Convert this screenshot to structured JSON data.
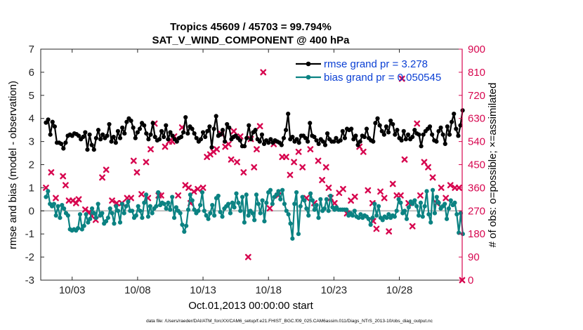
{
  "chart_data": {
    "type": "line",
    "title": "Tropics 45609 / 45703 = 99.794%",
    "subtitle": "SAT_V_WIND_COMPONENT @ 400 hPa",
    "xlabel": "Oct.01,2013 00:00:00 start",
    "ylabel_left": "rmse and bias (model - observation)",
    "ylabel_right": "# of obs: o=possible; ×=assimilated",
    "footnote": "data file: /Users/raeder/DAI/ATM_forcXX/CAM6_setup/f.e21.FHIST_BGC.f09_025.CAM6assim.011/Diags_NTrS_2013-10/obs_diag_output.nc",
    "xlim": [
      0.6,
      32.8
    ],
    "ylim_left": [
      -3,
      7
    ],
    "ylim_right": [
      0,
      900
    ],
    "x_tick_labels": [
      "10/03",
      "10/08",
      "10/13",
      "10/18",
      "10/23",
      "10/28"
    ],
    "x_tick_values": [
      3,
      8,
      13,
      18,
      23,
      28
    ],
    "y_left_ticks": [
      "-3",
      "-2",
      "-1",
      "0",
      "1",
      "2",
      "3",
      "4",
      "5",
      "6",
      "7"
    ],
    "y_right_ticks": [
      "0",
      "90",
      "180",
      "270",
      "360",
      "450",
      "540",
      "630",
      "720",
      "810",
      "900"
    ],
    "colors": {
      "rmse": "#000000",
      "bias": "#0b8282",
      "obs": "#d7064f",
      "zero": "#bfbfbf",
      "legend_text": "#0a3fd4"
    },
    "series": [
      {
        "name": "rmse grand pr = 3.278",
        "axis": "left",
        "values": [
          3.82,
          3.95,
          3.3,
          3.85,
          3.65,
          2.95,
          2.95,
          2.9,
          2.7,
          2.95,
          3.25,
          3.3,
          3.25,
          3.35,
          3.32,
          3.25,
          3.1,
          3.2,
          3.4,
          2.65,
          3.3,
          2.85,
          2.65,
          3.15,
          3.5,
          3.1,
          3.3,
          3.15,
          3.25,
          3.75,
          3.0,
          3.2,
          2.95,
          3.45,
          3.15,
          3.6,
          3.35,
          3.85,
          4.0,
          3.9,
          3.6,
          3.15,
          3.4,
          3.55,
          3.8,
          3.7,
          3.35,
          3.1,
          3.3,
          3.8,
          3.2,
          3.05,
          3.1,
          3.45,
          3.2,
          3.7,
          3.1,
          3.4,
          3.25,
          3.1,
          3.0,
          3.15,
          3.2,
          3.4,
          4.05,
          3.35,
          3.65,
          3.55,
          3.35,
          3.15,
          3.0,
          3.1,
          3.4,
          3.2,
          3.45,
          3.65,
          2.75,
          3.55,
          4.1,
          3.25,
          3.3,
          3.5,
          3.0,
          3.75,
          3.6,
          3.1,
          3.2,
          3.25,
          3.15,
          3.05,
          2.8,
          2.8,
          3.15,
          3.7,
          3.1,
          3.4,
          3.5,
          3.1,
          3.0,
          3.3,
          2.9,
          3.05,
          2.95,
          3.1,
          2.95,
          3.05,
          3.0,
          2.95,
          2.85,
          3.15,
          3.5,
          4.2,
          3.1,
          3.2,
          3.0,
          3.1,
          2.95,
          3.25,
          3.25,
          3.15,
          3.0,
          3.8,
          3.25,
          3.2,
          3.05,
          2.9,
          3.1,
          3.0,
          2.85,
          3.35,
          3.1,
          3.0,
          3.0,
          3.15,
          3.0,
          3.05,
          3.45,
          3.15,
          3.55,
          3.5,
          3.55,
          3.1,
          3.25,
          2.85,
          3.0,
          3.25,
          3.2,
          3.55,
          3.15,
          3.05,
          3.0,
          3.8,
          4.0,
          3.7,
          3.45,
          3.3,
          3.65,
          3.4,
          3.9,
          3.75,
          3.3,
          3.5,
          3.15,
          3.05,
          3.45,
          3.1,
          3.3,
          3.1,
          3.2,
          3.5,
          3.35,
          3.3,
          2.8,
          3.3,
          3.45,
          3.55,
          3.65,
          3.3,
          3.05,
          3.0,
          3.45,
          3.6,
          3.3,
          2.9,
          3.65,
          3.3,
          3.85,
          4.2,
          3.55,
          3.25,
          3.7,
          4.35
        ]
      },
      {
        "name": "bias grand pr = 0.050545",
        "axis": "left",
        "values": [
          0.6,
          0.85,
          0.3,
          0.2,
          0.3,
          -0.2,
          0.2,
          -0.3,
          0.25,
          0.1,
          -0.1,
          -0.2,
          -0.8,
          -0.85,
          -0.8,
          -0.85,
          -0.75,
          -0.15,
          -0.8,
          -0.65,
          -0.15,
          -0.5,
          -0.35,
          0.1,
          -0.1,
          -0.3,
          0.3,
          -0.2,
          -0.1,
          -0.55,
          -0.45,
          -0.3,
          0.1,
          -0.1,
          -0.55,
          0.2,
          0.0,
          -0.5,
          0.3,
          -0.1,
          0.2,
          0.4,
          0.0,
          0.0,
          -0.3,
          -0.2,
          0.2,
          0.0,
          -0.3,
          0.35,
          0.7,
          -0.25,
          0.2,
          -0.1,
          0.1,
          0.2,
          0.8,
          0.25,
          0.35,
          0.3,
          0.1,
          0.35,
          0.05,
          0.6,
          -0.3,
          0.15,
          0.0,
          -0.1,
          -0.6,
          -0.9,
          -0.65,
          0.05,
          0.7,
          0.45,
          0.05,
          -0.1,
          0.0,
          0.25,
          0.8,
          0.0,
          -0.2,
          -0.35,
          -0.1,
          0.25,
          -0.2,
          0.55,
          0.65,
          -0.05,
          -0.25,
          0.1,
          0.2,
          0.3,
          -0.1,
          0.35,
          0.15,
          0.75,
          0.35,
          0.0,
          0.6,
          -0.5,
          0.7,
          -0.2,
          0.0,
          -0.1,
          -0.4,
          0.7,
          0.3,
          -0.1,
          0.45,
          -0.45,
          0.35,
          0.8,
          0.9,
          0.3,
          0.6,
          0.7,
          0.85,
          0.5,
          0.9,
          0.3,
          0.0,
          -0.15,
          -0.55,
          -1.2,
          0.3,
          0.8,
          -1.0,
          0.2,
          0.6,
          0.45,
          0.1,
          -0.2,
          0.75,
          0.45,
          0.05,
          0.25,
          -0.3,
          0.5,
          0.0,
          0.1,
          0.5,
          0.0,
          0.65,
          0.15,
          0.05,
          0.15,
          0.05,
          0.05,
          0.05,
          0.05,
          0.05,
          -0.2,
          -0.1,
          -0.2,
          0.0,
          -0.25,
          -0.3,
          -0.15,
          -0.3,
          -0.2,
          -0.25,
          -0.35,
          -0.6,
          -0.3,
          0.3,
          -0.2,
          0.2,
          -0.3,
          -0.4,
          -0.25,
          -0.3,
          -0.15,
          -0.3,
          -0.2,
          -0.25,
          0.0,
          0.5,
          0.35,
          -0.1,
          0.0,
          -0.35,
          0.15,
          0.4,
          0.3,
          0.45,
          0.2,
          -0.2,
          0.35,
          -0.25,
          0.2,
          0.85,
          -0.15,
          -0.5,
          0.9,
          -0.1,
          0.6,
          0.35,
          0.1,
          0.2,
          0.3,
          -0.35,
          0.1,
          0.45,
          0.25,
          0.35,
          -0.15,
          -0.95,
          -0.1,
          -1.0
        ]
      }
    ],
    "obs_points": [
      {
        "x": 1.0,
        "v": 360
      },
      {
        "x": 1.4,
        "v": 420
      },
      {
        "x": 1.75,
        "v": 320
      },
      {
        "x": 2.3,
        "v": 405
      },
      {
        "x": 2.5,
        "v": 370
      },
      {
        "x": 2.75,
        "v": 310
      },
      {
        "x": 3.05,
        "v": 310
      },
      {
        "x": 3.3,
        "v": 300
      },
      {
        "x": 3.5,
        "v": 315
      },
      {
        "x": 4.0,
        "v": 275
      },
      {
        "x": 4.3,
        "v": 265
      },
      {
        "x": 4.5,
        "v": 250
      },
      {
        "x": 4.8,
        "v": 235
      },
      {
        "x": 5.3,
        "v": 400
      },
      {
        "x": 5.6,
        "v": 430
      },
      {
        "x": 6.05,
        "v": 310
      },
      {
        "x": 6.4,
        "v": 300
      },
      {
        "x": 6.8,
        "v": 300
      },
      {
        "x": 7.2,
        "v": 320
      },
      {
        "x": 7.5,
        "v": 320
      },
      {
        "x": 7.7,
        "v": 465
      },
      {
        "x": 7.95,
        "v": 420
      },
      {
        "x": 8.3,
        "v": 335
      },
      {
        "x": 8.65,
        "v": 460
      },
      {
        "x": 8.8,
        "v": 320
      },
      {
        "x": 9.0,
        "v": 510
      },
      {
        "x": 9.3,
        "v": 610
      },
      {
        "x": 9.8,
        "v": 330
      },
      {
        "x": 10.1,
        "v": 520
      },
      {
        "x": 10.4,
        "v": 540
      },
      {
        "x": 10.65,
        "v": 540
      },
      {
        "x": 10.8,
        "v": 560
      },
      {
        "x": 11.1,
        "v": 330
      },
      {
        "x": 11.4,
        "v": 595
      },
      {
        "x": 11.65,
        "v": 370
      },
      {
        "x": 11.9,
        "v": 360
      },
      {
        "x": 12.05,
        "v": 300
      },
      {
        "x": 12.3,
        "v": 345
      },
      {
        "x": 12.6,
        "v": 355
      },
      {
        "x": 13.0,
        "v": 360
      },
      {
        "x": 13.3,
        "v": 480
      },
      {
        "x": 13.55,
        "v": 490
      },
      {
        "x": 13.8,
        "v": 500
      },
      {
        "x": 14.05,
        "v": 510
      },
      {
        "x": 14.4,
        "v": 570
      },
      {
        "x": 14.7,
        "v": 520
      },
      {
        "x": 14.95,
        "v": 530
      },
      {
        "x": 15.15,
        "v": 470
      },
      {
        "x": 15.35,
        "v": 580
      },
      {
        "x": 15.6,
        "v": 460
      },
      {
        "x": 15.85,
        "v": 560
      },
      {
        "x": 16.1,
        "v": 420
      },
      {
        "x": 16.45,
        "v": 90
      },
      {
        "x": 16.65,
        "v": 550
      },
      {
        "x": 16.9,
        "v": 440
      },
      {
        "x": 17.1,
        "v": 510
      },
      {
        "x": 17.35,
        "v": 600
      },
      {
        "x": 17.6,
        "v": 810
      },
      {
        "x": 18.1,
        "v": 280
      },
      {
        "x": 18.4,
        "v": 530
      },
      {
        "x": 18.75,
        "v": 330
      },
      {
        "x": 19.05,
        "v": 480
      },
      {
        "x": 19.35,
        "v": 480
      },
      {
        "x": 19.65,
        "v": 410
      },
      {
        "x": 19.95,
        "v": 460
      },
      {
        "x": 20.3,
        "v": 500
      },
      {
        "x": 20.6,
        "v": 440
      },
      {
        "x": 20.9,
        "v": 320
      },
      {
        "x": 21.2,
        "v": 510
      },
      {
        "x": 21.5,
        "v": 300
      },
      {
        "x": 21.8,
        "v": 465
      },
      {
        "x": 22.1,
        "v": 390
      },
      {
        "x": 22.4,
        "v": 440
      },
      {
        "x": 22.75,
        "v": 320
      },
      {
        "x": 23.05,
        "v": 300
      },
      {
        "x": 23.4,
        "v": 340
      },
      {
        "x": 23.7,
        "v": 355
      },
      {
        "x": 24.0,
        "v": 260
      },
      {
        "x": 24.3,
        "v": 310
      },
      {
        "x": 24.6,
        "v": 325
      },
      {
        "x": 24.95,
        "v": 520
      },
      {
        "x": 25.25,
        "v": 500
      },
      {
        "x": 25.6,
        "v": 350
      },
      {
        "x": 25.95,
        "v": 300
      },
      {
        "x": 26.25,
        "v": 200
      },
      {
        "x": 26.55,
        "v": 345
      },
      {
        "x": 26.85,
        "v": 320
      },
      {
        "x": 27.2,
        "v": 190
      },
      {
        "x": 27.5,
        "v": 375
      },
      {
        "x": 27.8,
        "v": 330
      },
      {
        "x": 28.1,
        "v": 330
      },
      {
        "x": 28.4,
        "v": 470
      },
      {
        "x": 28.7,
        "v": 300
      },
      {
        "x": 29.0,
        "v": 210
      },
      {
        "x": 29.35,
        "v": 610
      },
      {
        "x": 29.6,
        "v": 330
      },
      {
        "x": 29.9,
        "v": 460
      },
      {
        "x": 30.2,
        "v": 440
      },
      {
        "x": 30.55,
        "v": 400
      },
      {
        "x": 30.85,
        "v": 300
      },
      {
        "x": 31.2,
        "v": 360
      },
      {
        "x": 31.55,
        "v": 320
      },
      {
        "x": 31.9,
        "v": 370
      },
      {
        "x": 32.25,
        "v": 360
      },
      {
        "x": 32.55,
        "v": 360
      },
      {
        "x": 32.8,
        "v": 0
      },
      {
        "x": 28.2,
        "v": 785
      },
      {
        "x": 9.6,
        "v": 330
      },
      {
        "x": 22.6,
        "v": 360
      },
      {
        "x": 26.0,
        "v": 230
      }
    ]
  }
}
